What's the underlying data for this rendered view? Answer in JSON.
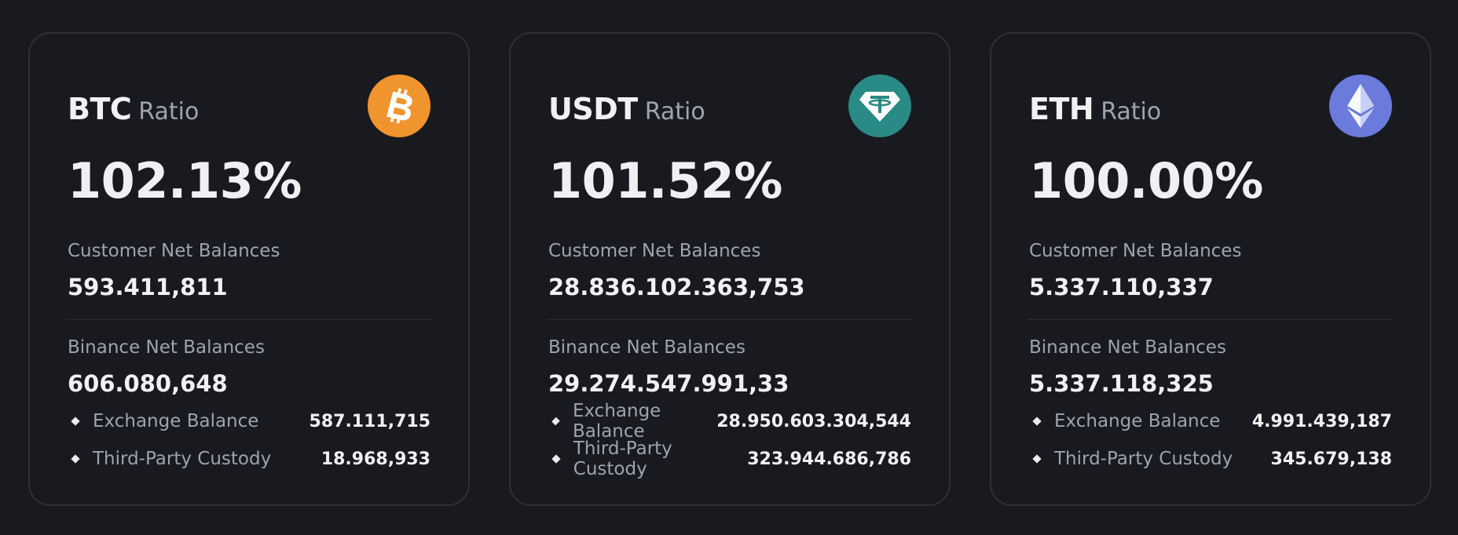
{
  "cards": [
    {
      "symbol": "BTC",
      "ratio_word": "Ratio",
      "ratio": "102.13%",
      "icon": "bitcoin-icon",
      "icon_color": "#f0942e",
      "customer_label": "Customer Net Balances",
      "customer_value": "593.411,811",
      "binance_label": "Binance Net Balances",
      "binance_value": "606.080,648",
      "sub": [
        {
          "label": "Exchange Balance",
          "value": "587.111,715"
        },
        {
          "label": "Third-Party Custody",
          "value": "18.968,933"
        }
      ]
    },
    {
      "symbol": "USDT",
      "ratio_word": "Ratio",
      "ratio": "101.52%",
      "icon": "tether-icon",
      "icon_color": "#2a8a85",
      "customer_label": "Customer Net Balances",
      "customer_value": "28.836.102.363,753",
      "binance_label": "Binance Net Balances",
      "binance_value": "29.274.547.991,33",
      "sub": [
        {
          "label": "Exchange Balance",
          "value": "28.950.603.304,544"
        },
        {
          "label": "Third-Party Custody",
          "value": "323.944.686,786"
        }
      ]
    },
    {
      "symbol": "ETH",
      "ratio_word": "Ratio",
      "ratio": "100.00%",
      "icon": "ethereum-icon",
      "icon_color": "#6b7bdc",
      "customer_label": "Customer Net Balances",
      "customer_value": "5.337.110,337",
      "binance_label": "Binance Net Balances",
      "binance_value": "5.337.118,325",
      "sub": [
        {
          "label": "Exchange Balance",
          "value": "4.991.439,187"
        },
        {
          "label": "Third-Party Custody",
          "value": "345.679,138"
        }
      ]
    }
  ]
}
